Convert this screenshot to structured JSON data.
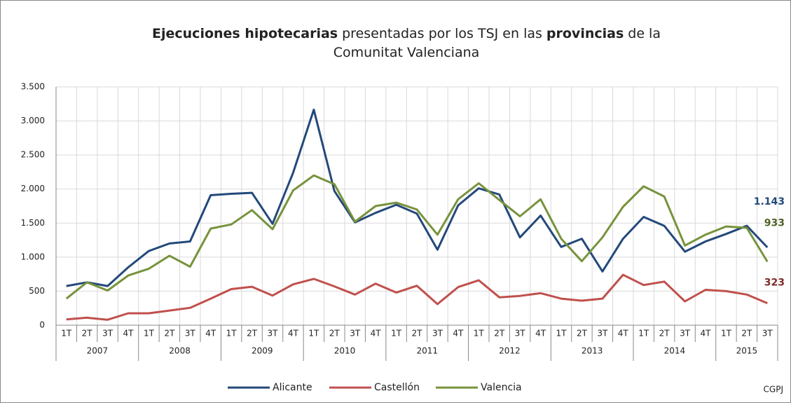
{
  "chart_data": {
    "type": "line",
    "title": [
      [
        {
          "text": "Ejecuciones hipotecarias",
          "bold": true
        },
        {
          "text": "presentadas por los TSJ en las",
          "bold": false
        },
        {
          "text": "provincias",
          "bold": true
        },
        {
          "text": "de la",
          "bold": false
        }
      ],
      [
        {
          "text": "Comunitat Valenciana",
          "bold": false
        }
      ]
    ],
    "categories": [
      "1T",
      "2T",
      "3T",
      "4T",
      "1T",
      "2T",
      "3T",
      "4T",
      "1T",
      "2T",
      "3T",
      "4T",
      "1T",
      "2T",
      "3T",
      "4T",
      "1T",
      "2T",
      "3T",
      "4T",
      "1T",
      "2T",
      "3T",
      "4T",
      "1T",
      "2T",
      "3T",
      "4T",
      "1T",
      "2T",
      "3T",
      "4T",
      "1T",
      "2T",
      "3T"
    ],
    "years": [
      "2007",
      "2008",
      "2009",
      "2010",
      "2011",
      "2012",
      "2013",
      "2014",
      "2015"
    ],
    "series": [
      {
        "name": "Alicante",
        "color": "#23497a",
        "label_color": "#23497a",
        "values": [
          575,
          630,
          575,
          850,
          1090,
          1200,
          1230,
          1910,
          1930,
          1945,
          1490,
          2240,
          3165,
          1970,
          1510,
          1650,
          1770,
          1640,
          1110,
          1760,
          2010,
          1920,
          1290,
          1610,
          1150,
          1270,
          790,
          1270,
          1590,
          1460,
          1080,
          1230,
          1340,
          1460,
          1143
        ],
        "value_labels": {
          "34": "1.143"
        }
      },
      {
        "name": "Castellón",
        "color": "#c0504d",
        "label_color": "#7b2c2a",
        "values": [
          85,
          110,
          80,
          175,
          175,
          215,
          255,
          390,
          530,
          565,
          435,
          600,
          680,
          570,
          450,
          610,
          480,
          580,
          310,
          560,
          660,
          410,
          430,
          470,
          390,
          360,
          390,
          740,
          590,
          640,
          350,
          520,
          500,
          450,
          323
        ],
        "value_labels": {
          "34": "323"
        }
      },
      {
        "name": "Valencia",
        "color": "#77933c",
        "label_color": "#4f6228",
        "values": [
          390,
          630,
          510,
          730,
          830,
          1020,
          860,
          1420,
          1480,
          1690,
          1410,
          1980,
          2200,
          2070,
          1520,
          1750,
          1800,
          1700,
          1330,
          1850,
          2085,
          1840,
          1600,
          1850,
          1270,
          940,
          1290,
          1740,
          2040,
          1890,
          1170,
          1330,
          1450,
          1430,
          933
        ],
        "value_labels": {
          "34": "933"
        }
      }
    ],
    "ylim": [
      0,
      3500
    ],
    "yticks": [
      0,
      500,
      {
        "value": 1000,
        "label": "1.000"
      },
      {
        "value": 1500,
        "label": "1.500"
      },
      {
        "value": 2000,
        "label": "2.000"
      },
      {
        "value": 2500,
        "label": "2.500"
      },
      {
        "value": 3000,
        "label": "3.000"
      },
      {
        "value": 3500,
        "label": "3.500"
      }
    ],
    "grid": true,
    "legend": "bottom",
    "source": "CGPJ"
  }
}
